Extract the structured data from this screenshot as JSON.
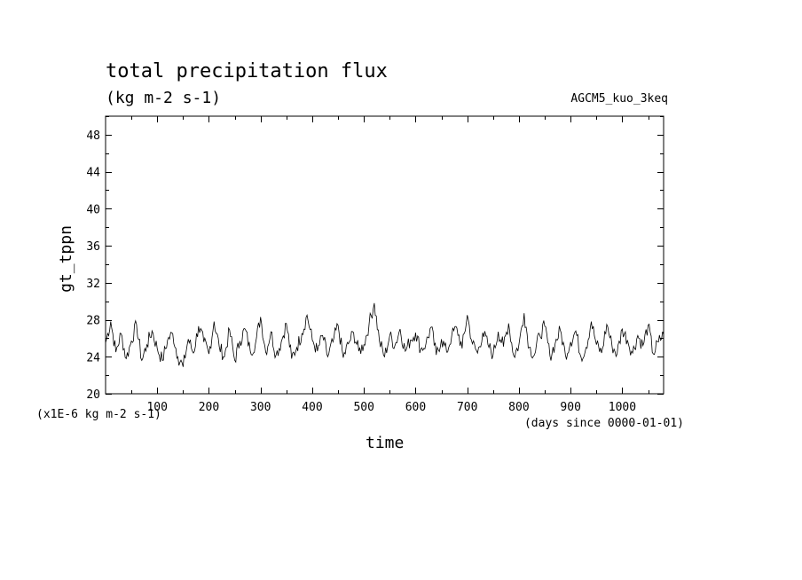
{
  "chart_data": {
    "type": "line",
    "title": "total precipitation flux",
    "units": "(kg m-2 s-1)",
    "run_name": "AGCM5_kuo_3keq",
    "scale_note": "(x1E-6 kg m-2 s-1)",
    "xlabel": "time",
    "x_units": "(days since 0000-01-01)",
    "ylabel": "gt_tppn",
    "xlim": [
      0,
      1080
    ],
    "ylim": [
      20,
      50
    ],
    "x_ticks": [
      100,
      200,
      300,
      400,
      500,
      600,
      700,
      800,
      900,
      1000
    ],
    "y_ticks": [
      20,
      24,
      28,
      32,
      36,
      40,
      44,
      48
    ],
    "grid": false,
    "series": [
      {
        "x": [
          0,
          10,
          20,
          30,
          40,
          50,
          60,
          70,
          80,
          90,
          100,
          110,
          120,
          130,
          140,
          150,
          160,
          170,
          180,
          190,
          200,
          210,
          220,
          230,
          240,
          250,
          260,
          270,
          280,
          290,
          300,
          310,
          320,
          330,
          340,
          350,
          360,
          370,
          380,
          390,
          400,
          410,
          420,
          430,
          440,
          450,
          460,
          470,
          480,
          490,
          500,
          510,
          520,
          530,
          540,
          550,
          560,
          570,
          580,
          590,
          600,
          610,
          620,
          630,
          640,
          650,
          660,
          670,
          680,
          690,
          700,
          710,
          720,
          730,
          740,
          750,
          760,
          770,
          780,
          790,
          800,
          810,
          820,
          830,
          840,
          850,
          860,
          870,
          880,
          890,
          900,
          910,
          920,
          930,
          940,
          950,
          960,
          970,
          980,
          990,
          1000,
          1010,
          1020,
          1030,
          1040,
          1050,
          1060,
          1070,
          1080
        ],
        "values": [
          25.5,
          27.8,
          24.5,
          26.5,
          23.8,
          25.7,
          27.5,
          23.6,
          25.3,
          26.8,
          24.9,
          23.6,
          25.8,
          26.5,
          24.0,
          22.9,
          25.9,
          24.4,
          27.3,
          25.6,
          24.3,
          27.8,
          25.1,
          24.0,
          26.9,
          23.6,
          25.7,
          27.0,
          24.6,
          25.4,
          28.3,
          24.5,
          26.7,
          24.2,
          25.6,
          27.6,
          23.8,
          25.0,
          26.5,
          28.5,
          25.8,
          24.6,
          26.3,
          24.0,
          25.6,
          27.4,
          23.9,
          25.4,
          26.6,
          24.6,
          25.3,
          27.5,
          29.8,
          25.7,
          24.0,
          26.3,
          25.2,
          27.0,
          24.6,
          25.8,
          26.6,
          24.8,
          25.4,
          27.2,
          24.2,
          25.9,
          24.5,
          26.3,
          27.1,
          24.9,
          28.5,
          25.4,
          24.4,
          26.6,
          25.3,
          24.2,
          26.7,
          25.1,
          27.6,
          24.1,
          25.3,
          28.7,
          25.0,
          24.2,
          26.4,
          27.3,
          24.1,
          25.4,
          26.9,
          24.2,
          25.6,
          26.8,
          24.0,
          25.0,
          27.8,
          25.3,
          24.4,
          27.5,
          25.2,
          24.3,
          27.0,
          25.8,
          24.4,
          26.3,
          25.2,
          27.4,
          24.3,
          25.6,
          26.4
        ]
      }
    ]
  }
}
